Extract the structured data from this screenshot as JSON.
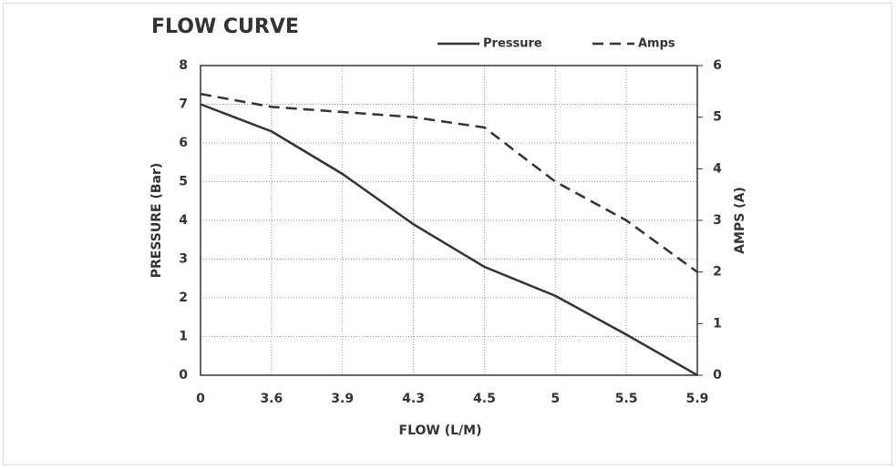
{
  "chart_data": {
    "type": "line",
    "title": "FLOW CURVE",
    "x_label": "FLOW (L/M)",
    "y_label": "PRESSURE (Bar)",
    "y2_label": "AMPS (A)",
    "categories": [
      "0",
      "3.6",
      "3.9",
      "4.3",
      "4.5",
      "5",
      "5.5",
      "5.9"
    ],
    "series": [
      {
        "name": "Pressure",
        "color": "#333333",
        "style": "solid",
        "values": [
          7.0,
          6.3,
          5.2,
          3.9,
          2.8,
          2.05,
          1.05,
          0
        ]
      },
      {
        "name": "Amps",
        "color": "#333333",
        "style": "dashed",
        "axis": "y2",
        "values": [
          5.45,
          5.2,
          5.1,
          5.0,
          4.8,
          3.75,
          3.0,
          2.0
        ]
      }
    ],
    "ylim": [
      0,
      8
    ],
    "yticks": [
      0,
      1,
      2,
      3,
      4,
      5,
      6,
      7,
      8
    ],
    "y2lim": [
      0,
      6
    ],
    "y2ticks": [
      0,
      1,
      2,
      3,
      4,
      5,
      6
    ],
    "grid": true,
    "legend": "top"
  }
}
